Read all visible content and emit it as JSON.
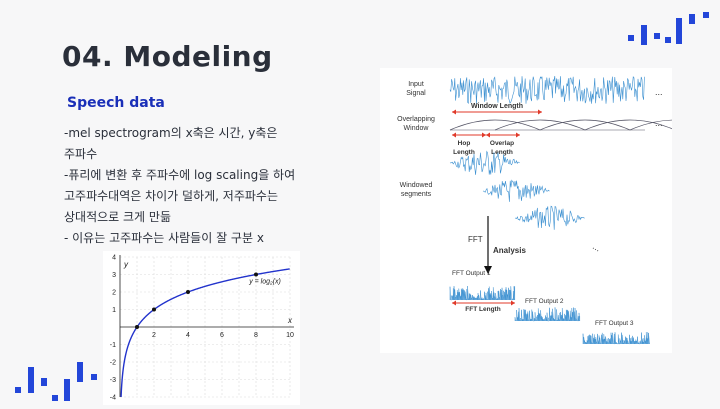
{
  "slide": {
    "title": "04. Modeling",
    "subtitle": "Speech data",
    "body_lines": [
      "-mel spectrogram의 x축은 시간, y축은",
      "주파수",
      "-퓨리에 변환 후 주파수에 log scaling을 하여",
      "고주파수대역은 차이가 덜하게, 저주파수는",
      "상대적으로 크게 만듦",
      "- 이유는 고주파수는 사람들이 잘 구분 x"
    ],
    "accent_color": "#2346d9"
  },
  "log_plot": {
    "chart_data": {
      "type": "line",
      "title": "",
      "xlabel": "x",
      "ylabel": "y",
      "xlim": [
        0,
        10
      ],
      "ylim": [
        -4,
        4
      ],
      "x_ticks": [
        "2",
        "4",
        "6",
        "8",
        "10"
      ],
      "y_ticks": [
        "4",
        "3",
        "2",
        "1",
        "-1",
        "-2",
        "-3",
        "-4"
      ],
      "grid": true,
      "curve_label": "y = log₂(x)",
      "series": [
        {
          "x": [
            0.0625,
            0.125,
            0.25,
            0.5,
            1,
            2,
            3,
            4,
            5,
            6,
            7,
            8,
            9,
            10
          ],
          "y": [
            -4,
            -3,
            -2,
            -1,
            0,
            1,
            1.585,
            2,
            2.322,
            2.585,
            2.807,
            3,
            3.17,
            3.322
          ]
        }
      ],
      "marked_points": {
        "x": [
          1,
          2,
          4,
          8
        ],
        "y": [
          0,
          1,
          2,
          3
        ]
      }
    }
  },
  "fft_diagram": {
    "input_signal_label": "Input\nSignal",
    "overlapping_window_label": "Overlapping\nWindow",
    "window_length_label": "Window Length",
    "hop_length_label": "Hop\nLength",
    "overlap_length_label": "Overlap\nLength",
    "windowed_segments_label": "Windowed\nsegments",
    "fft_label": "FFT",
    "analysis_label": "Analysis",
    "fft_output_labels": [
      "FFT Output 1",
      "FFT Output 2",
      "FFT Output 3"
    ],
    "fft_length_label": "FFT Length",
    "ellipsis": "...",
    "signal_color": "#3a8fd0",
    "arrow_color": "#e03a2a"
  }
}
